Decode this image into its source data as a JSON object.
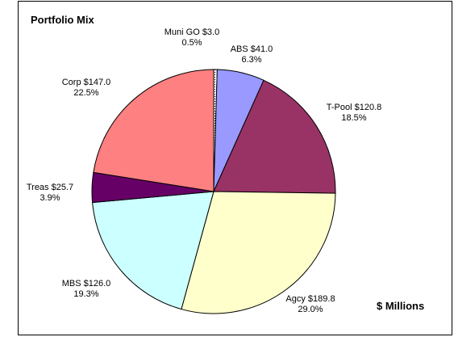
{
  "chart_data": {
    "type": "pie",
    "title": "Portfolio Mix",
    "units_label": "$ Millions",
    "start_angle_deg": 0,
    "direction": "clockwise",
    "slices": [
      {
        "name": "Muni GO",
        "value": 3.0,
        "percent": "0.5%",
        "value_label": "Muni GO $3.0",
        "color": "#ffffff",
        "pattern": "dotted"
      },
      {
        "name": "ABS",
        "value": 41.0,
        "percent": "6.3%",
        "value_label": "ABS $41.0",
        "color": "#9999ff"
      },
      {
        "name": "T-Pool",
        "value": 120.8,
        "percent": "18.5%",
        "value_label": "T-Pool $120.8",
        "color": "#993366"
      },
      {
        "name": "Agcy",
        "value": 189.8,
        "percent": "29.0%",
        "value_label": "Agcy $189.8",
        "color": "#ffffcc"
      },
      {
        "name": "MBS",
        "value": 126.0,
        "percent": "19.3%",
        "value_label": "MBS $126.0",
        "color": "#ccffff"
      },
      {
        "name": "Treas",
        "value": 25.7,
        "percent": "3.9%",
        "value_label": "Treas $25.7",
        "color": "#660066"
      },
      {
        "name": "Corp",
        "value": 147.0,
        "percent": "22.5%",
        "value_label": "Corp $147.0",
        "color": "#ff8080"
      }
    ]
  }
}
